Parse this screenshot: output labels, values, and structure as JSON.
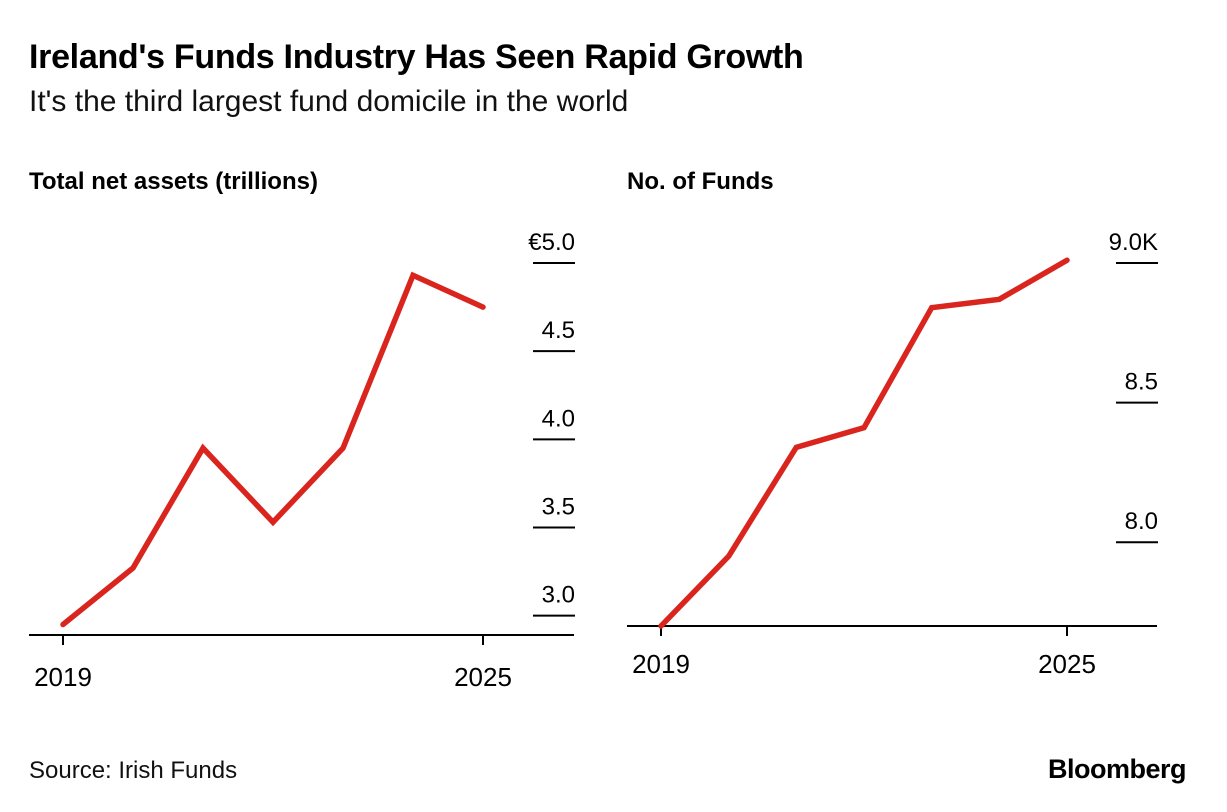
{
  "title": "Ireland's Funds Industry Has Seen Rapid Growth",
  "subtitle": "It's the third largest fund domicile in the world",
  "source": "Source: Irish Funds",
  "logo": "Bloomberg",
  "colors": {
    "line": "#d9251d",
    "axis": "#000000",
    "text": "#000000"
  },
  "chart_data": [
    {
      "type": "line",
      "title": "Total net assets (trillions)",
      "x": [
        2019,
        2020,
        2021,
        2022,
        2023,
        2024,
        2025
      ],
      "x_tick_labels": [
        "2019",
        "2025"
      ],
      "series": [
        {
          "values": [
            2.95,
            3.27,
            3.95,
            3.53,
            3.95,
            4.93,
            4.75
          ]
        }
      ],
      "y_ticks": [
        3.0,
        3.5,
        4.0,
        4.5,
        5.0
      ],
      "y_tick_labels": [
        "3.0",
        "3.5",
        "4.0",
        "4.5",
        "€5.0"
      ],
      "ylim": [
        2.93,
        5.0
      ],
      "y_axis_side": "right",
      "grid": false
    },
    {
      "type": "line",
      "title": "No. of Funds",
      "x": [
        2019,
        2020,
        2021,
        2022,
        2023,
        2024,
        2025
      ],
      "x_tick_labels": [
        "2019",
        "2025"
      ],
      "series": [
        {
          "values": [
            7.7,
            7.95,
            8.34,
            8.41,
            8.84,
            8.87,
            9.01
          ]
        }
      ],
      "y_ticks": [
        8.0,
        8.5,
        9.0
      ],
      "y_tick_labels": [
        "8.0",
        "8.5",
        "9.0K"
      ],
      "ylim": [
        7.7,
        9.0
      ],
      "y_axis_side": "right",
      "grid": false
    }
  ]
}
